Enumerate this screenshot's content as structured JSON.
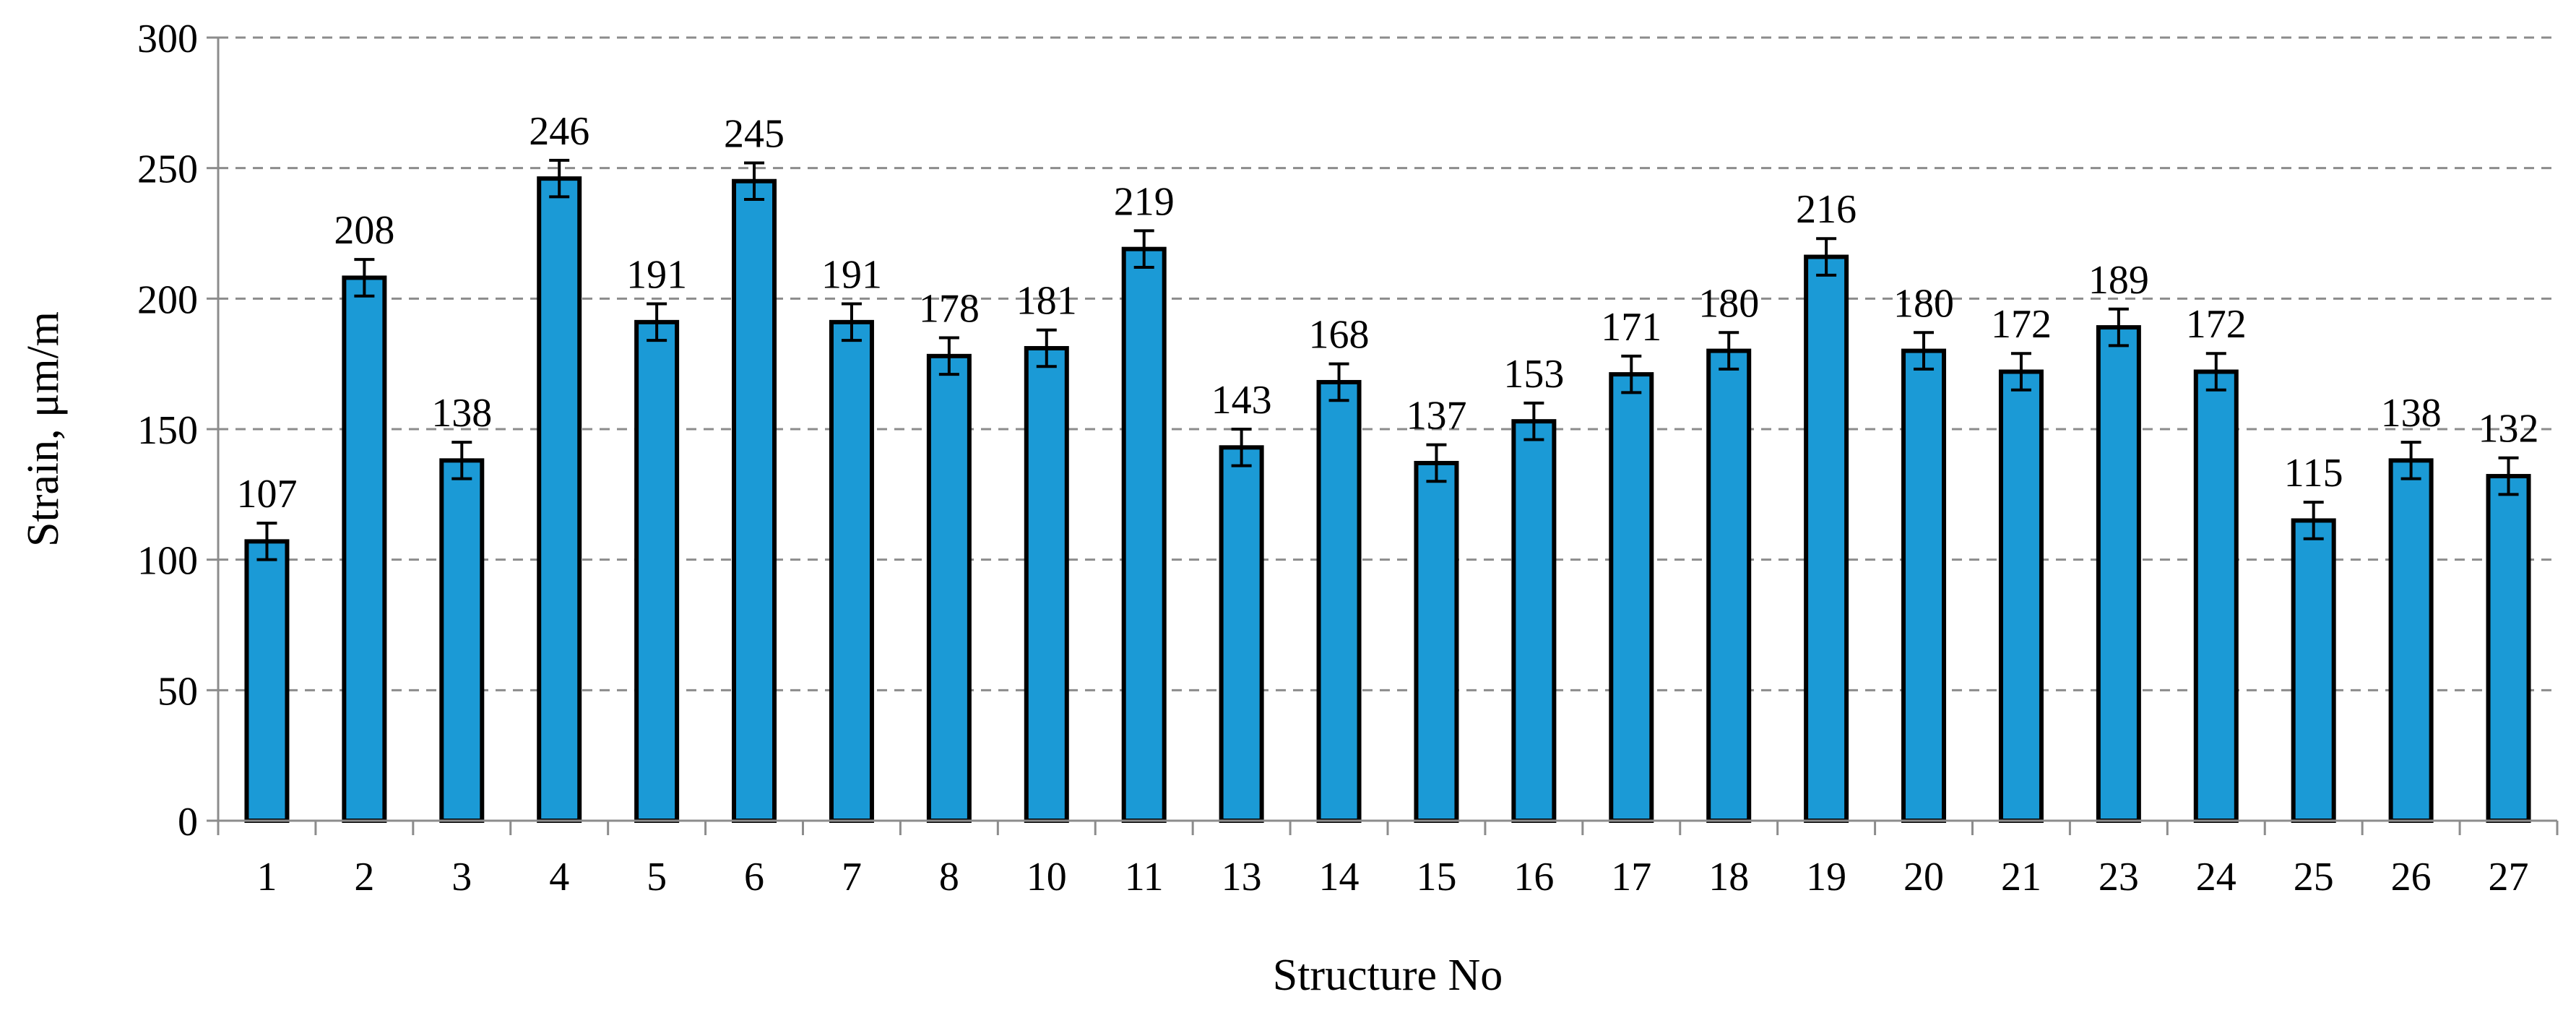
{
  "chart_data": {
    "type": "bar",
    "xlabel": "Structure No",
    "ylabel": "Strain, μm/m",
    "ylim": [
      0,
      300
    ],
    "yticks": [
      "0",
      "50",
      "100",
      "150",
      "200",
      "250",
      "300"
    ],
    "grid": "horizontal dashed",
    "error_bars": "±7",
    "categories": [
      "1",
      "2",
      "3",
      "4",
      "5",
      "6",
      "7",
      "8",
      "10",
      "11",
      "13",
      "14",
      "15",
      "16",
      "17",
      "18",
      "19",
      "20",
      "21",
      "23",
      "24",
      "25",
      "26",
      "27"
    ],
    "values": [
      107,
      208,
      138,
      246,
      191,
      245,
      191,
      178,
      181,
      219,
      143,
      168,
      137,
      153,
      171,
      180,
      216,
      180,
      172,
      189,
      172,
      115,
      138,
      132
    ],
    "data_labels": [
      "107",
      "208",
      "138",
      "246",
      "191",
      "245",
      "191",
      "178",
      "181",
      "219",
      "143",
      "168",
      "137",
      "153",
      "171",
      "180",
      "216",
      "180",
      "172",
      "189",
      "172",
      "115",
      "138",
      "132"
    ],
    "colors": {
      "bar": "#1b9ad6",
      "bar_outline": "#000000",
      "grid": "#8c8c8c",
      "axis": "#8c8c8c"
    }
  }
}
